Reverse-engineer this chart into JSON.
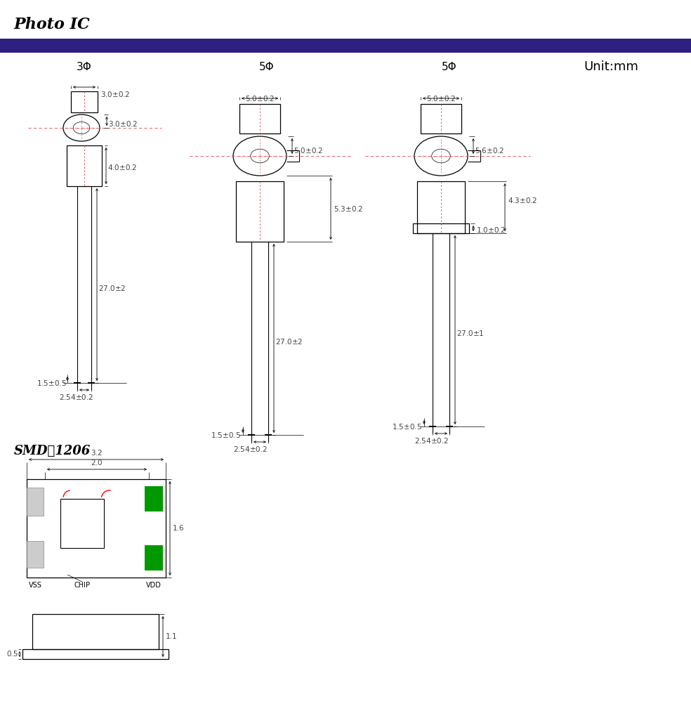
{
  "title": "Photo IC",
  "bar_color": "#2d2080",
  "bg_color": "#ffffff",
  "unit_text": "Unit:mm",
  "label_3phi": "3Φ",
  "label_5phi_mid": "5Φ",
  "label_5phi_right": "5Φ",
  "smd_label": "SMD：1206",
  "green_color": "#009900",
  "red_color": "#cc0000",
  "dim_color": "#444444",
  "dashed_color": "#dd4444",
  "line_color": "#000000",
  "gray_color": "#aaaaaa"
}
